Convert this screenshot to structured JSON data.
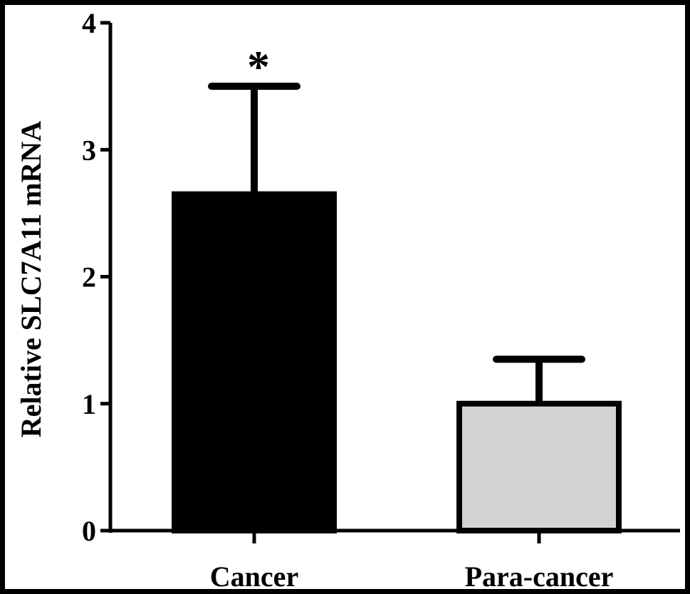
{
  "chart_data": {
    "type": "bar",
    "title": "",
    "xlabel": "",
    "ylabel": "Relative SLC7A11 mRNA",
    "categories": [
      "Cancer",
      "Para-cancer"
    ],
    "values": [
      2.65,
      1.0
    ],
    "error_upper": [
      3.5,
      1.35
    ],
    "ylim": [
      0,
      4
    ],
    "yticks": [
      "0",
      "1",
      "2",
      "3",
      "4"
    ],
    "bar_colors": [
      "#000000",
      "#d3d3d3"
    ],
    "annotations": [
      {
        "category": "Cancer",
        "text": "*"
      }
    ],
    "grid": false,
    "legend": "none"
  }
}
